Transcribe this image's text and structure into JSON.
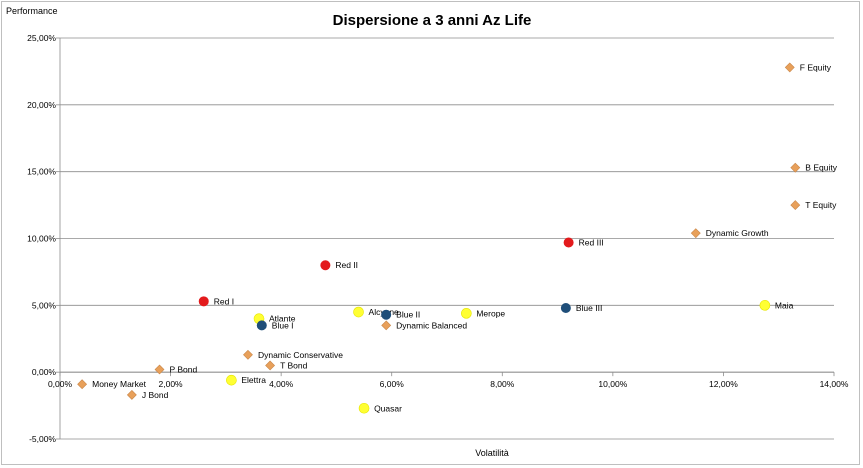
{
  "chart_data": {
    "type": "scatter",
    "title": "Dispersione a 3 anni Az Life",
    "xlabel": "Volatilità",
    "ylabel": "Performance",
    "xlim": [
      0,
      14
    ],
    "ylim": [
      -5,
      25
    ],
    "x_ticks": [
      0,
      2,
      4,
      6,
      8,
      10,
      12,
      14
    ],
    "y_ticks": [
      -5,
      0,
      5,
      10,
      15,
      20,
      25
    ],
    "x_tick_labels": [
      "0,00%",
      "2,00%",
      "4,00%",
      "6,00%",
      "8,00%",
      "10,00%",
      "12,00%",
      "14,00%"
    ],
    "y_tick_labels": [
      "-5,00%",
      "0,00%",
      "5,00%",
      "10,00%",
      "15,00%",
      "20,00%",
      "25,00%"
    ],
    "grid": "horizontal",
    "legend": "none",
    "marker_colors": {
      "red": "#e31a1c",
      "yellow": "#ffff33",
      "blue": "#1f4e79",
      "orange": "#e8a05a"
    },
    "points": [
      {
        "label": "F Equity",
        "x": 13.2,
        "y": 22.8,
        "group": "orange",
        "marker": "diamond"
      },
      {
        "label": "B Equity",
        "x": 13.3,
        "y": 15.3,
        "group": "orange",
        "marker": "diamond"
      },
      {
        "label": "T Equity",
        "x": 13.3,
        "y": 12.5,
        "group": "orange",
        "marker": "diamond"
      },
      {
        "label": "Dynamic Growth",
        "x": 11.5,
        "y": 10.4,
        "group": "orange",
        "marker": "diamond"
      },
      {
        "label": "Dynamic Balanced",
        "x": 5.9,
        "y": 3.5,
        "group": "orange",
        "marker": "diamond"
      },
      {
        "label": "Dynamic Conservative",
        "x": 3.4,
        "y": 1.3,
        "group": "orange",
        "marker": "diamond"
      },
      {
        "label": "T Bond",
        "x": 3.8,
        "y": 0.5,
        "group": "orange",
        "marker": "diamond"
      },
      {
        "label": "P Bond",
        "x": 1.8,
        "y": 0.2,
        "group": "orange",
        "marker": "diamond"
      },
      {
        "label": "Money Market",
        "x": 0.4,
        "y": -0.9,
        "group": "orange",
        "marker": "diamond"
      },
      {
        "label": "J Bond",
        "x": 1.3,
        "y": -1.7,
        "group": "orange",
        "marker": "diamond"
      },
      {
        "label": "Red I",
        "x": 2.6,
        "y": 5.3,
        "group": "red",
        "marker": "circle"
      },
      {
        "label": "Red II",
        "x": 4.8,
        "y": 8.0,
        "group": "red",
        "marker": "circle"
      },
      {
        "label": "Red III",
        "x": 9.2,
        "y": 9.7,
        "group": "red",
        "marker": "circle"
      },
      {
        "label": "Atlante",
        "x": 3.6,
        "y": 4.0,
        "group": "yellow",
        "marker": "circle"
      },
      {
        "label": "Alcyone",
        "x": 5.4,
        "y": 4.5,
        "group": "yellow",
        "marker": "circle"
      },
      {
        "label": "Merope",
        "x": 7.35,
        "y": 4.4,
        "group": "yellow",
        "marker": "circle"
      },
      {
        "label": "Maia",
        "x": 12.75,
        "y": 5.0,
        "group": "yellow",
        "marker": "circle"
      },
      {
        "label": "Elettra",
        "x": 3.1,
        "y": -0.6,
        "group": "yellow",
        "marker": "circle"
      },
      {
        "label": "Quasar",
        "x": 5.5,
        "y": -2.7,
        "group": "yellow",
        "marker": "circle"
      },
      {
        "label": "Blue I",
        "x": 3.65,
        "y": 3.5,
        "group": "blue",
        "marker": "circle"
      },
      {
        "label": "Blue II",
        "x": 5.9,
        "y": 4.3,
        "group": "blue",
        "marker": "circle"
      },
      {
        "label": "Blue III",
        "x": 9.15,
        "y": 4.8,
        "group": "blue",
        "marker": "circle"
      }
    ]
  }
}
